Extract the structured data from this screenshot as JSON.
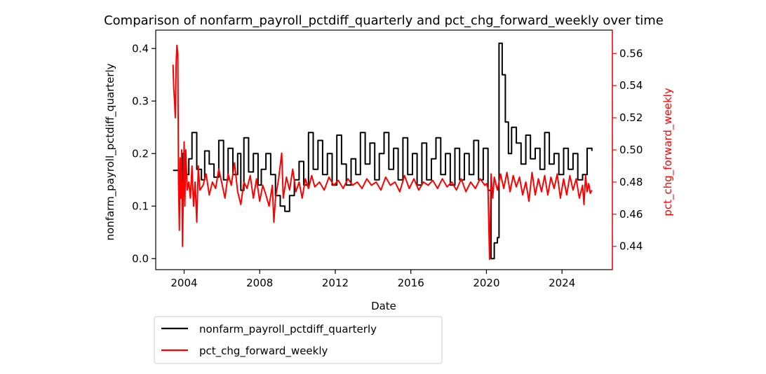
{
  "chart_data": {
    "type": "line",
    "title": "Comparison of nonfarm_payroll_pctdiff_quarterly and pct_chg_forward_weekly over time",
    "xlabel": "Date",
    "ylabel_left": "nonfarm_payroll_pctdiff_quarterly",
    "ylabel_right": "pct_chg_forward_weekly",
    "xlim": [
      "2002-07-01",
      "2026-09-01"
    ],
    "ylim_left": [
      -0.021,
      0.435
    ],
    "ylim_right": [
      0.4255,
      0.5745
    ],
    "x_ticks": [
      "2004",
      "2008",
      "2012",
      "2016",
      "2020",
      "2024"
    ],
    "y_ticks_left": [
      "0.0",
      "0.1",
      "0.2",
      "0.3",
      "0.4"
    ],
    "y_ticks_right": [
      "0.44",
      "0.46",
      "0.48",
      "0.50",
      "0.52",
      "0.54",
      "0.56"
    ],
    "grid": false,
    "legend_position": "below-left",
    "colors": {
      "left_series": "#000000",
      "right_series": "#ff0000",
      "right_axis": "#ff0000"
    },
    "series": [
      {
        "name": "nonfarm_payroll_pctdiff_quarterly",
        "axis": "left",
        "color": "#000000",
        "points": [
          [
            "2003-06-01",
            0.168
          ],
          [
            "2003-10-01",
            0.165
          ],
          [
            "2003-11-01",
            0.12
          ],
          [
            "2003-12-01",
            0.2
          ],
          [
            "2004-01-01",
            0.16
          ],
          [
            "2004-04-01",
            0.19
          ],
          [
            "2004-06-01",
            0.24
          ],
          [
            "2004-09-01",
            0.17
          ],
          [
            "2004-12-01",
            0.15
          ],
          [
            "2005-02-01",
            0.205
          ],
          [
            "2005-05-01",
            0.18
          ],
          [
            "2005-08-01",
            0.155
          ],
          [
            "2005-11-01",
            0.225
          ],
          [
            "2006-02-01",
            0.15
          ],
          [
            "2006-05-01",
            0.21
          ],
          [
            "2006-08-01",
            0.16
          ],
          [
            "2006-11-01",
            0.2
          ],
          [
            "2007-01-01",
            0.13
          ],
          [
            "2007-03-01",
            0.23
          ],
          [
            "2007-06-01",
            0.165
          ],
          [
            "2007-09-01",
            0.2
          ],
          [
            "2007-12-01",
            0.14
          ],
          [
            "2008-02-01",
            0.17
          ],
          [
            "2008-05-01",
            0.2
          ],
          [
            "2008-08-01",
            0.16
          ],
          [
            "2008-11-01",
            0.12
          ],
          [
            "2009-02-01",
            0.1
          ],
          [
            "2009-05-01",
            0.09
          ],
          [
            "2009-08-01",
            0.12
          ],
          [
            "2009-11-01",
            0.15
          ],
          [
            "2010-02-01",
            0.185
          ],
          [
            "2010-05-01",
            0.14
          ],
          [
            "2010-08-01",
            0.24
          ],
          [
            "2010-11-01",
            0.17
          ],
          [
            "2011-02-01",
            0.225
          ],
          [
            "2011-05-01",
            0.16
          ],
          [
            "2011-08-01",
            0.2
          ],
          [
            "2011-11-01",
            0.14
          ],
          [
            "2012-02-01",
            0.235
          ],
          [
            "2012-05-01",
            0.18
          ],
          [
            "2012-08-01",
            0.14
          ],
          [
            "2012-11-01",
            0.19
          ],
          [
            "2013-02-01",
            0.16
          ],
          [
            "2013-05-01",
            0.24
          ],
          [
            "2013-08-01",
            0.18
          ],
          [
            "2013-11-01",
            0.22
          ],
          [
            "2014-02-01",
            0.15
          ],
          [
            "2014-05-01",
            0.2
          ],
          [
            "2014-08-01",
            0.24
          ],
          [
            "2014-11-01",
            0.17
          ],
          [
            "2015-02-01",
            0.21
          ],
          [
            "2015-05-01",
            0.15
          ],
          [
            "2015-08-01",
            0.23
          ],
          [
            "2015-11-01",
            0.16
          ],
          [
            "2016-02-01",
            0.2
          ],
          [
            "2016-05-01",
            0.14
          ],
          [
            "2016-08-01",
            0.22
          ],
          [
            "2016-11-01",
            0.15
          ],
          [
            "2017-02-01",
            0.19
          ],
          [
            "2017-05-01",
            0.23
          ],
          [
            "2017-08-01",
            0.16
          ],
          [
            "2017-11-01",
            0.2
          ],
          [
            "2018-02-01",
            0.14
          ],
          [
            "2018-05-01",
            0.21
          ],
          [
            "2018-08-01",
            0.15
          ],
          [
            "2018-11-01",
            0.2
          ],
          [
            "2019-02-01",
            0.16
          ],
          [
            "2019-05-01",
            0.225
          ],
          [
            "2019-08-01",
            0.15
          ],
          [
            "2019-11-01",
            0.21
          ],
          [
            "2020-02-01",
            0.13
          ],
          [
            "2020-04-01",
            0.0
          ],
          [
            "2020-06-01",
            0.03
          ],
          [
            "2020-08-01",
            0.04
          ],
          [
            "2020-09-01",
            0.41
          ],
          [
            "2020-11-01",
            0.35
          ],
          [
            "2021-01-01",
            0.26
          ],
          [
            "2021-03-01",
            0.2
          ],
          [
            "2021-05-01",
            0.25
          ],
          [
            "2021-08-01",
            0.22
          ],
          [
            "2021-11-01",
            0.18
          ],
          [
            "2022-02-01",
            0.235
          ],
          [
            "2022-05-01",
            0.19
          ],
          [
            "2022-08-01",
            0.21
          ],
          [
            "2022-11-01",
            0.17
          ],
          [
            "2023-02-01",
            0.24
          ],
          [
            "2023-05-01",
            0.18
          ],
          [
            "2023-08-01",
            0.2
          ],
          [
            "2023-11-01",
            0.16
          ],
          [
            "2024-02-01",
            0.21
          ],
          [
            "2024-05-01",
            0.17
          ],
          [
            "2024-08-01",
            0.2
          ],
          [
            "2024-11-01",
            0.15
          ],
          [
            "2025-02-01",
            0.16
          ],
          [
            "2025-05-01",
            0.21
          ],
          [
            "2025-08-01",
            0.205
          ]
        ]
      },
      {
        "name": "pct_chg_forward_weekly",
        "axis": "right",
        "color": "#ff0000",
        "points": [
          [
            "2003-06-01",
            0.553
          ],
          [
            "2003-06-15",
            0.538
          ],
          [
            "2003-07-01",
            0.53
          ],
          [
            "2003-07-15",
            0.52
          ],
          [
            "2003-08-01",
            0.555
          ],
          [
            "2003-08-15",
            0.565
          ],
          [
            "2003-09-01",
            0.56
          ],
          [
            "2003-09-15",
            0.48
          ],
          [
            "2003-10-01",
            0.45
          ],
          [
            "2003-10-15",
            0.495
          ],
          [
            "2003-11-01",
            0.47
          ],
          [
            "2003-11-15",
            0.5
          ],
          [
            "2003-12-01",
            0.44
          ],
          [
            "2003-12-15",
            0.47
          ],
          [
            "2004-01-01",
            0.505
          ],
          [
            "2004-01-15",
            0.465
          ],
          [
            "2004-02-01",
            0.5
          ],
          [
            "2004-03-01",
            0.475
          ],
          [
            "2004-04-01",
            0.48
          ],
          [
            "2004-05-01",
            0.47
          ],
          [
            "2004-06-01",
            0.49
          ],
          [
            "2004-07-01",
            0.465
          ],
          [
            "2004-08-01",
            0.48
          ],
          [
            "2004-09-01",
            0.455
          ],
          [
            "2004-10-01",
            0.49
          ],
          [
            "2004-11-01",
            0.475
          ],
          [
            "2005-01-01",
            0.478
          ],
          [
            "2005-03-01",
            0.485
          ],
          [
            "2005-05-01",
            0.472
          ],
          [
            "2005-07-01",
            0.48
          ],
          [
            "2005-09-01",
            0.476
          ],
          [
            "2005-11-01",
            0.488
          ],
          [
            "2006-01-01",
            0.479
          ],
          [
            "2006-03-01",
            0.47
          ],
          [
            "2006-05-01",
            0.485
          ],
          [
            "2006-07-01",
            0.478
          ],
          [
            "2006-09-01",
            0.492
          ],
          [
            "2006-11-01",
            0.474
          ],
          [
            "2007-01-01",
            0.466
          ],
          [
            "2007-03-01",
            0.48
          ],
          [
            "2007-05-01",
            0.476
          ],
          [
            "2007-07-01",
            0.484
          ],
          [
            "2007-09-01",
            0.47
          ],
          [
            "2007-11-01",
            0.482
          ],
          [
            "2008-01-01",
            0.468
          ],
          [
            "2008-03-01",
            0.478
          ],
          [
            "2008-05-01",
            0.472
          ],
          [
            "2008-07-01",
            0.465
          ],
          [
            "2008-09-01",
            0.478
          ],
          [
            "2008-10-01",
            0.455
          ],
          [
            "2008-11-01",
            0.47
          ],
          [
            "2009-01-01",
            0.482
          ],
          [
            "2009-03-01",
            0.498
          ],
          [
            "2009-04-01",
            0.47
          ],
          [
            "2009-06-01",
            0.483
          ],
          [
            "2009-08-01",
            0.475
          ],
          [
            "2009-10-01",
            0.488
          ],
          [
            "2009-12-01",
            0.474
          ],
          [
            "2010-02-01",
            0.48
          ],
          [
            "2010-04-01",
            0.47
          ],
          [
            "2010-06-01",
            0.482
          ],
          [
            "2010-08-01",
            0.476
          ],
          [
            "2010-10-01",
            0.484
          ],
          [
            "2010-12-01",
            0.477
          ],
          [
            "2011-03-01",
            0.48
          ],
          [
            "2011-06-01",
            0.475
          ],
          [
            "2011-09-01",
            0.483
          ],
          [
            "2011-12-01",
            0.478
          ],
          [
            "2012-03-01",
            0.481
          ],
          [
            "2012-06-01",
            0.476
          ],
          [
            "2012-09-01",
            0.482
          ],
          [
            "2012-12-01",
            0.478
          ],
          [
            "2013-03-01",
            0.48
          ],
          [
            "2013-06-01",
            0.476
          ],
          [
            "2013-09-01",
            0.482
          ],
          [
            "2013-12-01",
            0.478
          ],
          [
            "2014-03-01",
            0.48
          ],
          [
            "2014-06-01",
            0.475
          ],
          [
            "2014-09-01",
            0.483
          ],
          [
            "2014-12-01",
            0.478
          ],
          [
            "2015-03-01",
            0.48
          ],
          [
            "2015-06-01",
            0.474
          ],
          [
            "2015-09-01",
            0.484
          ],
          [
            "2015-12-01",
            0.476
          ],
          [
            "2016-03-01",
            0.482
          ],
          [
            "2016-06-01",
            0.475
          ],
          [
            "2016-09-01",
            0.48
          ],
          [
            "2016-12-01",
            0.478
          ],
          [
            "2017-03-01",
            0.481
          ],
          [
            "2017-06-01",
            0.476
          ],
          [
            "2017-09-01",
            0.482
          ],
          [
            "2017-12-01",
            0.477
          ],
          [
            "2018-03-01",
            0.48
          ],
          [
            "2018-06-01",
            0.475
          ],
          [
            "2018-09-01",
            0.482
          ],
          [
            "2018-12-01",
            0.474
          ],
          [
            "2019-03-01",
            0.48
          ],
          [
            "2019-06-01",
            0.476
          ],
          [
            "2019-09-01",
            0.482
          ],
          [
            "2019-12-01",
            0.478
          ],
          [
            "2020-01-01",
            0.479
          ],
          [
            "2020-02-01",
            0.476
          ],
          [
            "2020-03-01",
            0.432
          ],
          [
            "2020-04-01",
            0.485
          ],
          [
            "2020-05-01",
            0.47
          ],
          [
            "2020-06-01",
            0.483
          ],
          [
            "2020-08-01",
            0.475
          ],
          [
            "2020-10-01",
            0.485
          ],
          [
            "2020-12-01",
            0.476
          ],
          [
            "2021-02-01",
            0.486
          ],
          [
            "2021-04-01",
            0.474
          ],
          [
            "2021-06-01",
            0.484
          ],
          [
            "2021-08-01",
            0.477
          ],
          [
            "2021-10-01",
            0.483
          ],
          [
            "2021-12-01",
            0.472
          ],
          [
            "2022-02-01",
            0.48
          ],
          [
            "2022-04-01",
            0.468
          ],
          [
            "2022-06-01",
            0.486
          ],
          [
            "2022-08-01",
            0.472
          ],
          [
            "2022-10-01",
            0.482
          ],
          [
            "2022-12-01",
            0.474
          ],
          [
            "2023-02-01",
            0.484
          ],
          [
            "2023-04-01",
            0.472
          ],
          [
            "2023-06-01",
            0.483
          ],
          [
            "2023-08-01",
            0.476
          ],
          [
            "2023-10-01",
            0.485
          ],
          [
            "2023-12-01",
            0.47
          ],
          [
            "2024-02-01",
            0.482
          ],
          [
            "2024-04-01",
            0.472
          ],
          [
            "2024-06-01",
            0.484
          ],
          [
            "2024-08-01",
            0.475
          ],
          [
            "2024-10-01",
            0.482
          ],
          [
            "2024-12-01",
            0.47
          ],
          [
            "2025-02-01",
            0.478
          ],
          [
            "2025-03-01",
            0.466
          ],
          [
            "2025-04-01",
            0.484
          ],
          [
            "2025-05-01",
            0.474
          ],
          [
            "2025-06-01",
            0.479
          ],
          [
            "2025-07-01",
            0.473
          ],
          [
            "2025-08-01",
            0.475
          ]
        ]
      }
    ]
  }
}
